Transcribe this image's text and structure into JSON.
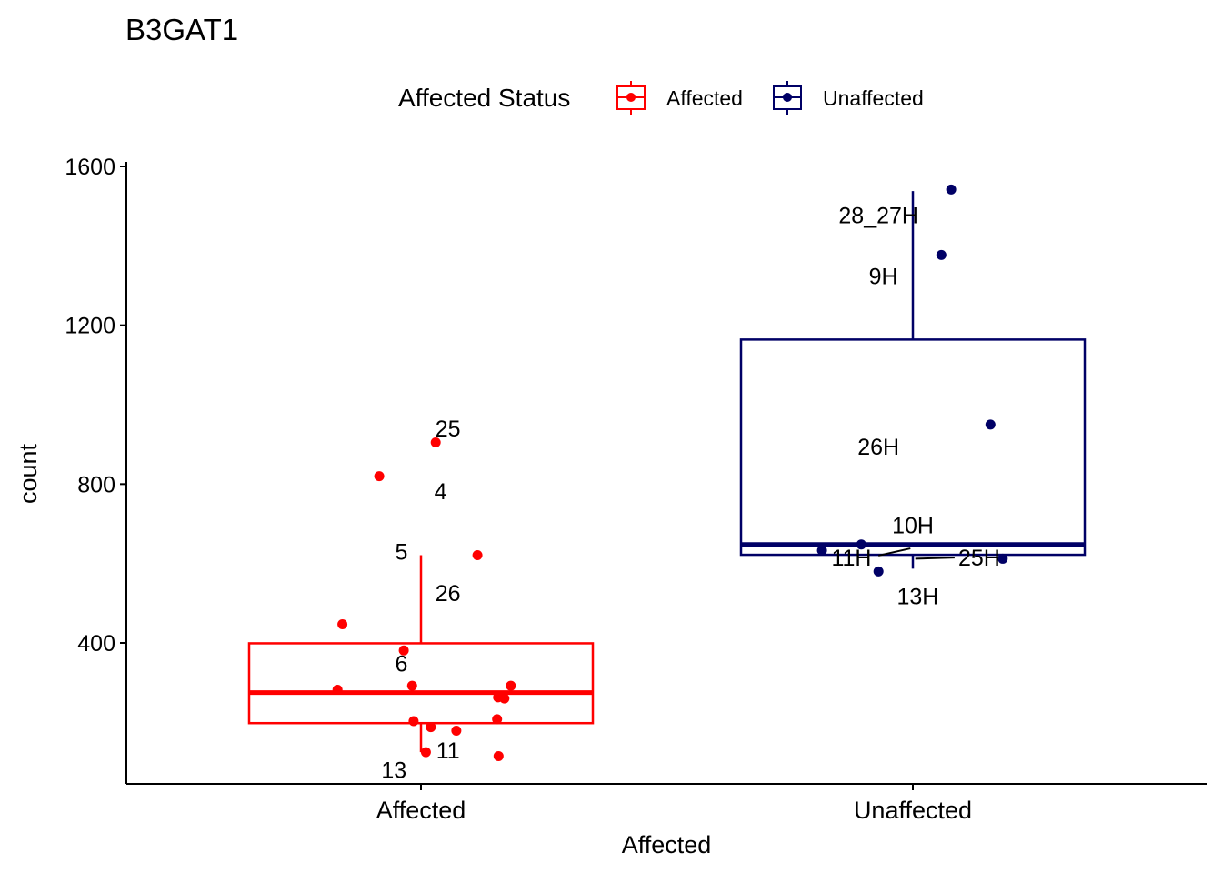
{
  "chart_data": {
    "type": "boxplot",
    "title": "B3GAT1",
    "xlabel": "Affected",
    "ylabel": "count",
    "ylim": [
      42,
      1607
    ],
    "yticks": [
      400,
      800,
      1200,
      1600
    ],
    "yticklabels": [
      "400",
      "800",
      "1200",
      "1600"
    ],
    "legend": {
      "title": "Affected Status",
      "position": "top",
      "entries": [
        {
          "label": "Affected",
          "color": "#ff0000"
        },
        {
          "label": "Unaffected",
          "color": "#000066"
        }
      ]
    },
    "groups": [
      {
        "name": "Affected",
        "color": "#ff0000",
        "box": {
          "whisker_low": 125,
          "q1": 198,
          "median": 275,
          "q3": 399,
          "whisker_high": 621
        },
        "points": [
          {
            "x": -0.17,
            "y": 282
          },
          {
            "x": -0.16,
            "y": 447
          },
          {
            "x": -0.085,
            "y": 820
          },
          {
            "x": -0.035,
            "y": 381
          },
          {
            "x": -0.018,
            "y": 292
          },
          {
            "x": -0.015,
            "y": 203
          },
          {
            "x": 0.01,
            "y": 125
          },
          {
            "x": 0.02,
            "y": 188
          },
          {
            "x": 0.03,
            "y": 905
          },
          {
            "x": 0.072,
            "y": 179
          },
          {
            "x": 0.115,
            "y": 621
          },
          {
            "x": 0.155,
            "y": 208
          },
          {
            "x": 0.157,
            "y": 263
          },
          {
            "x": 0.158,
            "y": 115
          },
          {
            "x": 0.17,
            "y": 260
          },
          {
            "x": 0.183,
            "y": 292
          }
        ],
        "labels": [
          {
            "text": "25",
            "x": 0.055,
            "y": 940
          },
          {
            "text": "4",
            "x": 0.04,
            "y": 783
          },
          {
            "text": "5",
            "x": -0.04,
            "y": 630
          },
          {
            "text": "26",
            "x": 0.055,
            "y": 526
          },
          {
            "text": "6",
            "x": -0.04,
            "y": 348
          },
          {
            "text": "11",
            "x": 0.055,
            "y": 130
          },
          {
            "text": "13",
            "x": -0.055,
            "y": 80
          }
        ]
      },
      {
        "name": "Unaffected",
        "color": "#000066",
        "box": {
          "whisker_low": 587,
          "q1": 622,
          "median": 648,
          "q3": 1164,
          "whisker_high": 1538
        },
        "points": [
          {
            "x": -0.185,
            "y": 633
          },
          {
            "x": -0.105,
            "y": 648
          },
          {
            "x": -0.07,
            "y": 580
          },
          {
            "x": 0.058,
            "y": 1377
          },
          {
            "x": 0.078,
            "y": 1542
          },
          {
            "x": 0.158,
            "y": 950
          },
          {
            "x": 0.183,
            "y": 612
          }
        ],
        "labels": [
          {
            "text": "28_27H",
            "x": -0.07,
            "y": 1477
          },
          {
            "text": "9H",
            "x": -0.06,
            "y": 1324
          },
          {
            "text": "26H",
            "x": -0.07,
            "y": 895
          },
          {
            "text": "10H",
            "x": 0.0,
            "y": 697
          },
          {
            "text": "11H",
            "x": -0.125,
            "y": 615
          },
          {
            "text": "25H",
            "x": 0.135,
            "y": 615
          },
          {
            "text": "13H",
            "x": 0.01,
            "y": 518
          }
        ],
        "connectors": [
          {
            "from": [
              -0.07,
              620
            ],
            "to": [
              -0.005,
              638
            ]
          },
          {
            "from": [
              0.005,
              612
            ],
            "to": [
              0.085,
              615
            ]
          }
        ]
      }
    ]
  }
}
